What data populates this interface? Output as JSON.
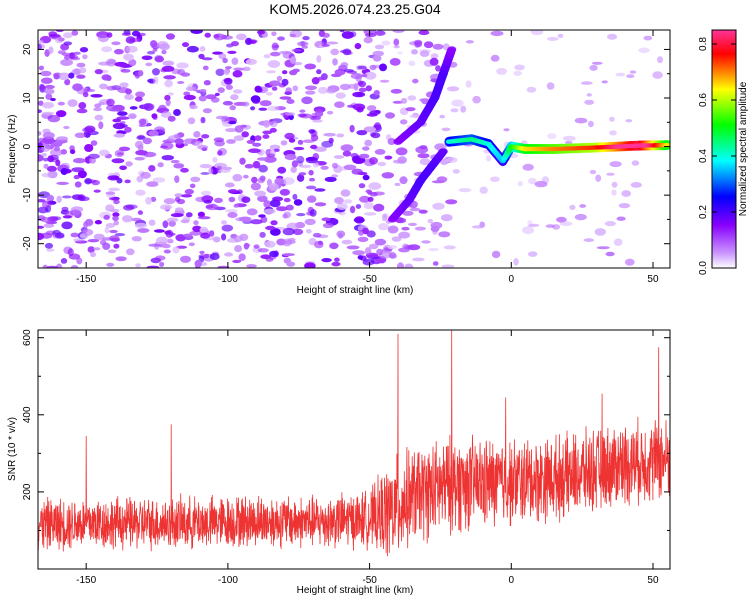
{
  "chart_data": [
    {
      "type": "heatmap",
      "title": "KOM5.2026.074.23.25.G04",
      "xlabel": "Height of straight line (km)",
      "ylabel": "Frequency (Hz)",
      "xlim": [
        -167,
        56
      ],
      "ylim": [
        -25,
        24
      ],
      "xticks": [
        -150,
        -100,
        -50,
        0,
        50
      ],
      "yticks": [
        20,
        10,
        0,
        -10,
        -20
      ],
      "colorbar": {
        "label": "Normalized spectral amplitude",
        "range": [
          0,
          0.85
        ],
        "ticks": [
          0.0,
          0.2,
          0.4,
          0.6,
          0.8
        ],
        "colors": [
          "#ffffff",
          "#8800ff",
          "#0000ff",
          "#00ffff",
          "#00ff00",
          "#ffff00",
          "#ff0000",
          "#ff3399"
        ]
      },
      "line_features": [
        {
          "name": "signal_band",
          "x": [
            -22,
            -14,
            -8,
            -3,
            0,
            5,
            15,
            30,
            45,
            55
          ],
          "y": [
            1,
            1.5,
            0.5,
            -3,
            0,
            -0.5,
            -0.5,
            -0.2,
            0.2,
            0.3
          ],
          "amplitude": [
            0.25,
            0.3,
            0.25,
            0.2,
            0.35,
            0.5,
            0.55,
            0.6,
            0.8,
            0.5
          ]
        },
        {
          "name": "upper_arm",
          "x": [
            -40,
            -32,
            -27,
            -24,
            -21
          ],
          "y": [
            1,
            5,
            10,
            15,
            20
          ],
          "amplitude": [
            0.15,
            0.18,
            0.2,
            0.2,
            0.15
          ]
        },
        {
          "name": "lower_arm",
          "x": [
            -42,
            -36,
            -32,
            -28,
            -24
          ],
          "y": [
            -15,
            -11,
            -7,
            -4,
            -1
          ],
          "amplitude": [
            0.15,
            0.18,
            0.2,
            0.2,
            0.18
          ]
        }
      ]
    },
    {
      "type": "line",
      "xlabel": "Height of straight line (km)",
      "ylabel": "SNR (10 * v/v)",
      "xlim": [
        -167,
        56
      ],
      "ylim": [
        0,
        620
      ],
      "xticks": [
        -150,
        -100,
        -50,
        0,
        50
      ],
      "yticks": [
        200,
        400,
        600
      ],
      "series": [
        {
          "name": "SNR",
          "color": "#ee3333",
          "x": [
            -167,
            -150,
            -130,
            -110,
            -90,
            -70,
            -50,
            -42,
            -35,
            -20,
            0,
            20,
            40,
            56
          ],
          "mean": [
            115,
            120,
            118,
            120,
            125,
            122,
            130,
            150,
            190,
            220,
            225,
            240,
            275,
            285
          ],
          "spread": [
            60,
            60,
            60,
            60,
            60,
            60,
            65,
            120,
            110,
            110,
            100,
            95,
            95,
            95
          ],
          "peaks": [
            [
              -150,
              345
            ],
            [
              -120,
              375
            ],
            [
              -40,
              610
            ],
            [
              -21,
              620
            ],
            [
              -2,
              445
            ],
            [
              32,
              455
            ],
            [
              52,
              575
            ]
          ]
        }
      ]
    }
  ]
}
